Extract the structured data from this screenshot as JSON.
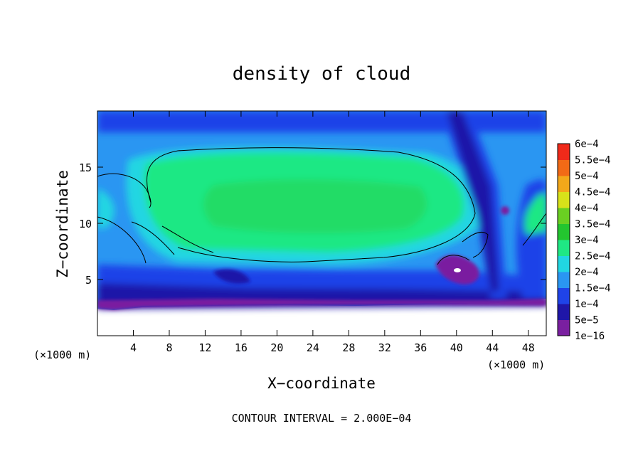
{
  "chart_data": {
    "type": "heatmap",
    "title": "density of cloud",
    "xlabel": "X−coordinate",
    "ylabel": "Z−coordinate",
    "x_unit": "(×1000 m)",
    "z_unit": "(×1000 m)",
    "xlim": [
      0,
      50
    ],
    "ylim": [
      0,
      20
    ],
    "x_ticks": [
      4,
      8,
      12,
      16,
      20,
      24,
      28,
      32,
      36,
      40,
      44,
      48
    ],
    "y_ticks": [
      5,
      10,
      15
    ],
    "colorbar": {
      "labels": [
        "1e−16",
        "5e−5",
        "1e−4",
        "1.5e−4",
        "2e−4",
        "2.5e−4",
        "3e−4",
        "3.5e−4",
        "4e−4",
        "4.5e−4",
        "5e−4",
        "5.5e−4",
        "6e−4"
      ],
      "colors": [
        "#7a1fa0",
        "#1f16a8",
        "#1f43e8",
        "#2a96f2",
        "#21d6e2",
        "#1fe884",
        "#23c52f",
        "#6ad022",
        "#d8e21a",
        "#f3a81a",
        "#f26a16",
        "#f02a1a",
        "#f28f8f"
      ]
    },
    "contour_interval_text": "CONTOUR INTERVAL = 2.000E−04"
  }
}
